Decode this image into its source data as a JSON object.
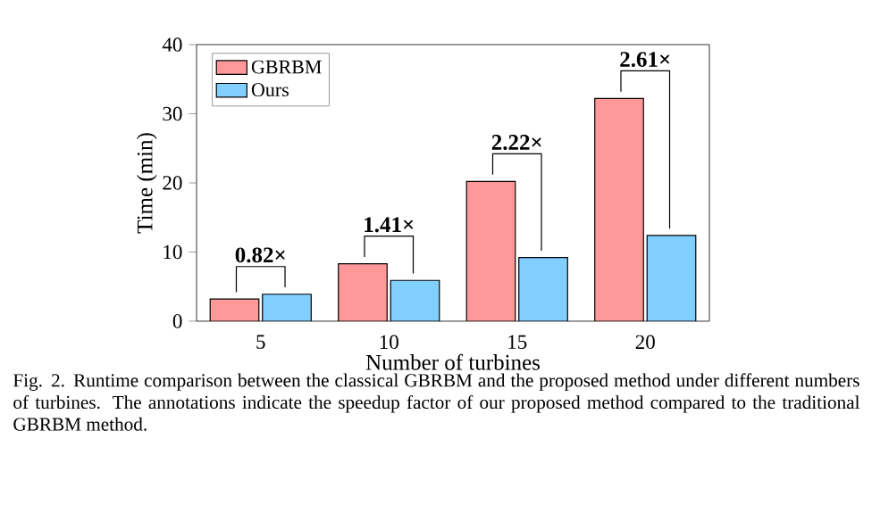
{
  "chart_data": {
    "type": "bar",
    "xlabel": "Number of turbines",
    "ylabel": "Time (min)",
    "categories": [
      "5",
      "10",
      "15",
      "20"
    ],
    "series": [
      {
        "name": "GBRBM",
        "color": "#ff9999",
        "values": [
          3.2,
          8.3,
          20.2,
          32.2
        ]
      },
      {
        "name": "Ours",
        "color": "#80cfff",
        "values": [
          3.9,
          5.9,
          9.2,
          12.4
        ]
      }
    ],
    "ylim": [
      0,
      40
    ],
    "yticks": [
      0,
      10,
      20,
      30,
      40
    ],
    "grid": false,
    "legend": "top left",
    "annotations": [
      {
        "text": "**0.82×**",
        "x": "5",
        "y": 3.9
      },
      {
        "text": "**1.41×**",
        "x": "10",
        "y": 8.3
      },
      {
        "text": "**2.22×**",
        "x": "15",
        "y": 20.2
      },
      {
        "text": "**2.61×**",
        "x": "20",
        "y": 32.2
      },
      "Fig. 2.  Runtime comparison between the classical GBRBM and the proposed method under different numbers of turbines. The annotations indicate the speedup factor of our proposed method compared to the traditional GBRBM method."
    ]
  }
}
